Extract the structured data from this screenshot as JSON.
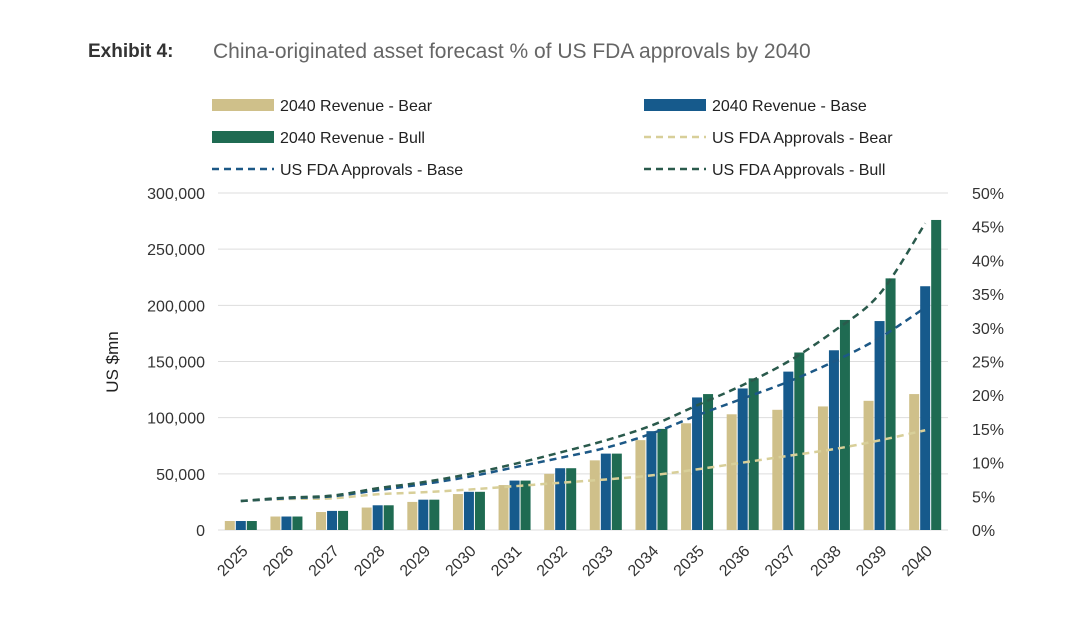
{
  "header": {
    "exhibit_label": "Exhibit 4:",
    "title": "China-originated asset forecast % of US FDA approvals by 2040"
  },
  "colors": {
    "bear_bar": "#cfc08a",
    "base_bar": "#165a8c",
    "bull_bar": "#1f6b52",
    "bear_line": "#d8cf99",
    "base_line": "#1c5886",
    "bull_line": "#2a5a4c",
    "grid": "#dddddd"
  },
  "chart_data": {
    "type": "bar",
    "title": "China-originated asset forecast % of US FDA approvals by 2040",
    "xlabel": "",
    "ylabel": "US $mn",
    "ylim": [
      0,
      300000
    ],
    "y_ticks": [
      "0",
      "50,000",
      "100,000",
      "150,000",
      "200,000",
      "250,000",
      "300,000"
    ],
    "y2lim": [
      0,
      50
    ],
    "y2_ticks": [
      "0%",
      "5%",
      "10%",
      "15%",
      "20%",
      "25%",
      "30%",
      "35%",
      "40%",
      "45%",
      "50%"
    ],
    "grid": true,
    "categories": [
      "2025",
      "2026",
      "2027",
      "2028",
      "2029",
      "2030",
      "2031",
      "2032",
      "2033",
      "2034",
      "2035",
      "2036",
      "2037",
      "2038",
      "2039",
      "2040"
    ],
    "series": [
      {
        "name": "2040 Revenue - Bear",
        "kind": "bar",
        "axis": "left",
        "color": "#cfc08a",
        "values": [
          8000,
          12000,
          16000,
          20000,
          25000,
          32000,
          40000,
          50000,
          62000,
          80000,
          95000,
          103000,
          107000,
          110000,
          115000,
          121000
        ]
      },
      {
        "name": "2040 Revenue - Base",
        "kind": "bar",
        "axis": "left",
        "color": "#165a8c",
        "values": [
          8000,
          12000,
          17000,
          22000,
          27000,
          34000,
          44000,
          55000,
          68000,
          88000,
          118000,
          126000,
          141000,
          160000,
          186000,
          217000
        ]
      },
      {
        "name": "2040 Revenue - Bull",
        "kind": "bar",
        "axis": "left",
        "color": "#1f6b52",
        "values": [
          8000,
          12000,
          17000,
          22000,
          27000,
          34000,
          44000,
          55000,
          68000,
          90000,
          121000,
          135000,
          158000,
          187000,
          224000,
          276000
        ]
      },
      {
        "name": "US FDA Approvals - Bear",
        "kind": "line",
        "axis": "right",
        "color": "#d8cf99",
        "values": [
          4.3,
          4.6,
          4.7,
          5.3,
          5.6,
          6.0,
          6.5,
          7.0,
          7.5,
          8.1,
          9.0,
          10.0,
          11.0,
          12.0,
          13.3,
          14.8
        ]
      },
      {
        "name": "US FDA Approvals - Base",
        "kind": "line",
        "axis": "right",
        "color": "#1c5886",
        "values": [
          4.3,
          4.7,
          5.0,
          5.9,
          6.8,
          7.9,
          9.3,
          10.7,
          12.2,
          14.3,
          17.0,
          19.5,
          22.0,
          25.0,
          28.5,
          33.0
        ]
      },
      {
        "name": "US FDA Approvals - Bull",
        "kind": "line",
        "axis": "right",
        "color": "#2a5a4c",
        "values": [
          4.3,
          4.8,
          5.1,
          6.2,
          7.1,
          8.3,
          9.8,
          11.5,
          13.3,
          15.5,
          18.5,
          21.5,
          25.0,
          29.5,
          35.0,
          45.5
        ]
      }
    ],
    "legend_position": "top"
  }
}
